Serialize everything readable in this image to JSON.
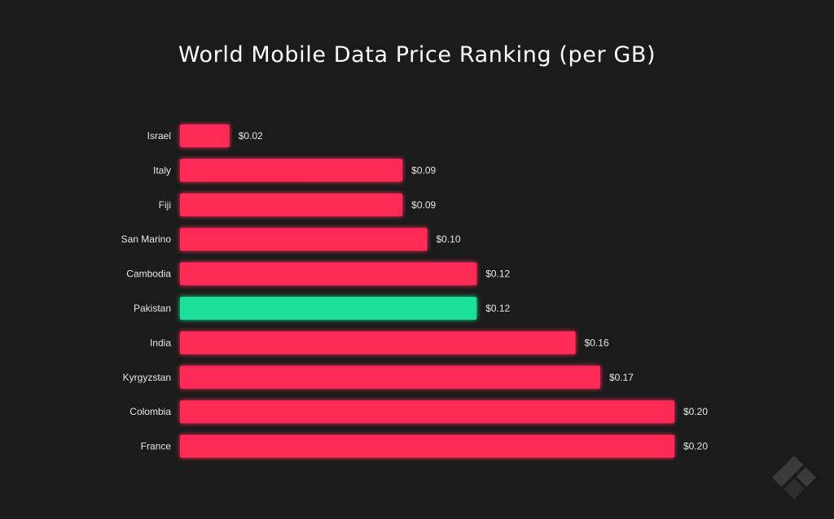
{
  "chart_data": {
    "type": "bar",
    "orientation": "horizontal",
    "title": "World Mobile Data Price Ranking (per GB)",
    "categories": [
      "Israel",
      "Italy",
      "Fiji",
      "San Marino",
      "Cambodia",
      "Pakistan",
      "India",
      "Kyrgyzstan",
      "Colombia",
      "France"
    ],
    "values": [
      0.02,
      0.09,
      0.09,
      0.1,
      0.12,
      0.12,
      0.16,
      0.17,
      0.2,
      0.2
    ],
    "value_labels": [
      "$0.02",
      "$0.09",
      "$0.09",
      "$0.10",
      "$0.12",
      "$0.12",
      "$0.16",
      "$0.17",
      "$0.20",
      "$0.20"
    ],
    "highlight": "Pakistan",
    "xlim": [
      0,
      0.2
    ],
    "grid": false,
    "legend": "none",
    "colors": {
      "bar": "#ff2b56",
      "highlight": "#1de09a",
      "background": "#1b1b1b",
      "text": "#e6e6e6"
    }
  },
  "icons": {
    "logo": "brand-logo-icon"
  }
}
